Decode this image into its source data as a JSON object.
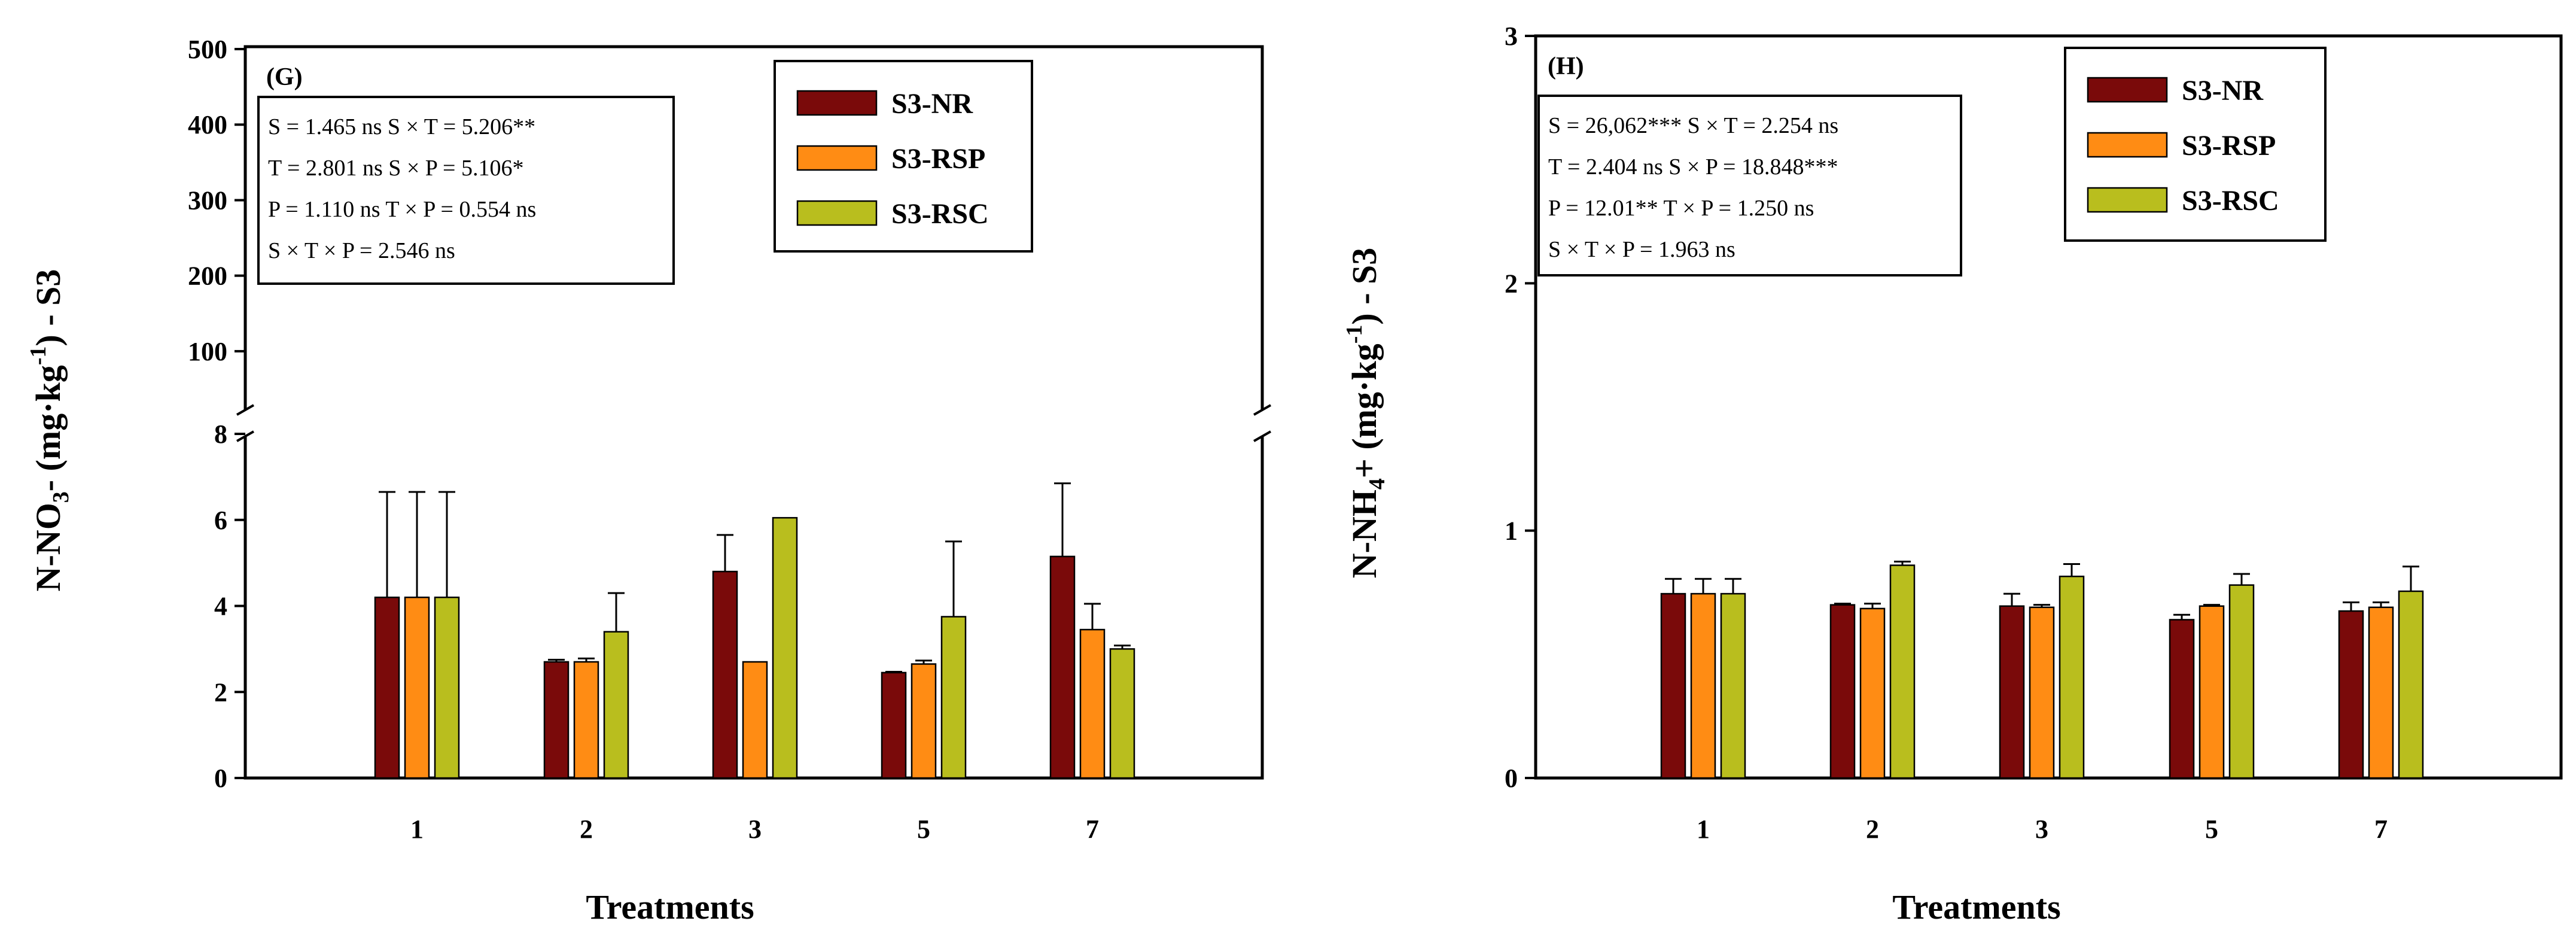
{
  "colors": {
    "S3-NR": "#7a0a0a",
    "S3-RSP": "#ff8c14",
    "S3-RSC": "#b9be1e"
  },
  "chart_data": [
    {
      "type": "bar",
      "panel": "(G)",
      "xlabel": "Treatments",
      "ylabel_parts": [
        "N-NO",
        "3",
        "- (mg·kg",
        "-1",
        ") - S3"
      ],
      "categories": [
        "1",
        "2",
        "3",
        "5",
        "7"
      ],
      "axis_break": true,
      "ylim_lower": [
        0,
        8
      ],
      "yticks_lower": [
        "0",
        "2",
        "4",
        "6",
        "8"
      ],
      "ylim_upper": [
        50,
        500
      ],
      "yticks_upper": [
        "100",
        "200",
        "300",
        "400",
        "500"
      ],
      "series": [
        {
          "name": "S3-NR",
          "values": [
            4.2,
            2.7,
            4.8,
            2.45,
            5.15
          ],
          "errors": [
            2.45,
            0.05,
            0.85,
            0.02,
            1.7
          ]
        },
        {
          "name": "S3-RSP",
          "values": [
            4.2,
            2.7,
            2.7,
            2.65,
            3.45
          ],
          "errors": [
            2.45,
            0.08,
            0.0,
            0.08,
            0.6
          ]
        },
        {
          "name": "S3-RSC",
          "values": [
            4.2,
            3.4,
            6.05,
            3.75,
            3.0
          ],
          "errors": [
            2.45,
            0.9,
            0.0,
            1.75,
            0.08
          ]
        }
      ],
      "stats": [
        "S = 1.465 ns     S × T = 5.206**",
        "T = 2.801 ns     S × P = 5.106*",
        "P = 1.110 ns     T × P = 0.554 ns",
        "S × T × P = 2.546 ns"
      ],
      "legend": [
        "S3-NR",
        "S3-RSP",
        "S3-RSC"
      ]
    },
    {
      "type": "bar",
      "panel": "(H)",
      "xlabel": "Treatments",
      "ylabel_parts": [
        "N-NH",
        "4",
        "+ (mg·kg",
        "-1",
        ") - S3"
      ],
      "categories": [
        "1",
        "2",
        "3",
        "5",
        "7"
      ],
      "ylim": [
        0,
        3
      ],
      "yticks": [
        "0",
        "1",
        "2",
        "3"
      ],
      "series": [
        {
          "name": "S3-NR",
          "values": [
            0.745,
            0.7,
            0.695,
            0.64,
            0.675
          ],
          "errors": [
            0.06,
            0.005,
            0.05,
            0.02,
            0.035
          ]
        },
        {
          "name": "S3-RSP",
          "values": [
            0.745,
            0.685,
            0.69,
            0.695,
            0.69
          ],
          "errors": [
            0.06,
            0.02,
            0.01,
            0.005,
            0.02
          ]
        },
        {
          "name": "S3-RSC",
          "values": [
            0.745,
            0.86,
            0.815,
            0.78,
            0.755
          ],
          "errors": [
            0.06,
            0.015,
            0.05,
            0.045,
            0.1
          ]
        }
      ],
      "stats": [
        "S = 26,062*** S × T = 2.254 ns",
        "T = 2.404 ns     S × P = 18.848***",
        "P = 12.01**     T × P = 1.250 ns",
        "S × T × P = 1.963 ns"
      ],
      "legend": [
        "S3-NR",
        "S3-RSP",
        "S3-RSC"
      ]
    }
  ]
}
